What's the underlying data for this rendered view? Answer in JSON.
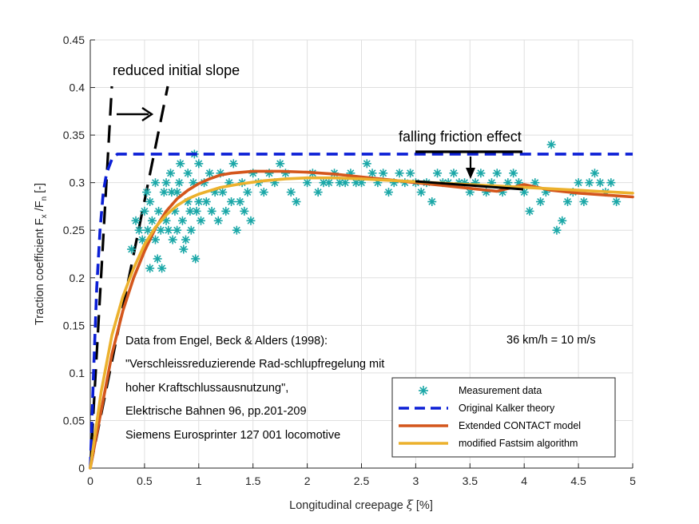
{
  "chart_data": {
    "type": "line",
    "xlabel_main": "Longitudinal creepage ",
    "xlabel_symbol": "ξ",
    "xlabel_unit": " [%]",
    "ylabel_main": "Traction coefficient F",
    "ylabel_sub1": "x",
    "ylabel_mid": " /F",
    "ylabel_sub2": "n",
    "ylabel_unit": " [-]",
    "xlim": [
      0,
      5
    ],
    "ylim": [
      0,
      0.45
    ],
    "x_ticks": [
      "0",
      "0.5",
      "1",
      "1.5",
      "2",
      "2.5",
      "3",
      "3.5",
      "4",
      "4.5",
      "5"
    ],
    "y_ticks": [
      "0",
      "0.05",
      "0.1",
      "0.15",
      "0.2",
      "0.25",
      "0.3",
      "0.35",
      "0.4",
      "0.45"
    ],
    "grid": true,
    "legend_position": "bottom-right",
    "series": [
      {
        "name": "Measurement data",
        "style": "markers",
        "color": "#1aa7a7",
        "points": [
          [
            0.38,
            0.23
          ],
          [
            0.42,
            0.26
          ],
          [
            0.45,
            0.25
          ],
          [
            0.48,
            0.24
          ],
          [
            0.5,
            0.27
          ],
          [
            0.52,
            0.29
          ],
          [
            0.53,
            0.25
          ],
          [
            0.55,
            0.21
          ],
          [
            0.55,
            0.28
          ],
          [
            0.57,
            0.26
          ],
          [
            0.6,
            0.24
          ],
          [
            0.6,
            0.3
          ],
          [
            0.62,
            0.22
          ],
          [
            0.63,
            0.27
          ],
          [
            0.65,
            0.25
          ],
          [
            0.66,
            0.21
          ],
          [
            0.68,
            0.29
          ],
          [
            0.7,
            0.3
          ],
          [
            0.7,
            0.26
          ],
          [
            0.72,
            0.25
          ],
          [
            0.74,
            0.31
          ],
          [
            0.75,
            0.29
          ],
          [
            0.76,
            0.24
          ],
          [
            0.78,
            0.27
          ],
          [
            0.8,
            0.25
          ],
          [
            0.8,
            0.29
          ],
          [
            0.82,
            0.3
          ],
          [
            0.83,
            0.32
          ],
          [
            0.85,
            0.26
          ],
          [
            0.86,
            0.23
          ],
          [
            0.88,
            0.24
          ],
          [
            0.9,
            0.28
          ],
          [
            0.9,
            0.31
          ],
          [
            0.92,
            0.27
          ],
          [
            0.93,
            0.25
          ],
          [
            0.95,
            0.3
          ],
          [
            0.96,
            0.33
          ],
          [
            0.97,
            0.22
          ],
          [
            0.98,
            0.27
          ],
          [
            1.0,
            0.32
          ],
          [
            1.0,
            0.28
          ],
          [
            1.02,
            0.26
          ],
          [
            1.05,
            0.3
          ],
          [
            1.07,
            0.28
          ],
          [
            1.1,
            0.31
          ],
          [
            1.12,
            0.27
          ],
          [
            1.15,
            0.29
          ],
          [
            1.18,
            0.26
          ],
          [
            1.2,
            0.31
          ],
          [
            1.22,
            0.29
          ],
          [
            1.25,
            0.27
          ],
          [
            1.28,
            0.3
          ],
          [
            1.3,
            0.28
          ],
          [
            1.32,
            0.32
          ],
          [
            1.35,
            0.25
          ],
          [
            1.38,
            0.28
          ],
          [
            1.4,
            0.3
          ],
          [
            1.42,
            0.27
          ],
          [
            1.45,
            0.29
          ],
          [
            1.48,
            0.26
          ],
          [
            1.5,
            0.31
          ],
          [
            1.55,
            0.3
          ],
          [
            1.6,
            0.29
          ],
          [
            1.65,
            0.31
          ],
          [
            1.7,
            0.3
          ],
          [
            1.75,
            0.32
          ],
          [
            1.8,
            0.31
          ],
          [
            1.85,
            0.29
          ],
          [
            1.9,
            0.28
          ],
          [
            2.0,
            0.3
          ],
          [
            2.05,
            0.31
          ],
          [
            2.1,
            0.29
          ],
          [
            2.15,
            0.3
          ],
          [
            2.2,
            0.3
          ],
          [
            2.25,
            0.31
          ],
          [
            2.3,
            0.3
          ],
          [
            2.35,
            0.3
          ],
          [
            2.4,
            0.31
          ],
          [
            2.45,
            0.3
          ],
          [
            2.5,
            0.3
          ],
          [
            2.55,
            0.32
          ],
          [
            2.6,
            0.31
          ],
          [
            2.65,
            0.3
          ],
          [
            2.7,
            0.31
          ],
          [
            2.75,
            0.29
          ],
          [
            2.8,
            0.3
          ],
          [
            2.85,
            0.31
          ],
          [
            2.9,
            0.3
          ],
          [
            2.95,
            0.31
          ],
          [
            3.0,
            0.3
          ],
          [
            3.05,
            0.29
          ],
          [
            3.1,
            0.3
          ],
          [
            3.15,
            0.28
          ],
          [
            3.2,
            0.31
          ],
          [
            3.25,
            0.3
          ],
          [
            3.3,
            0.3
          ],
          [
            3.35,
            0.31
          ],
          [
            3.4,
            0.3
          ],
          [
            3.45,
            0.3
          ],
          [
            3.5,
            0.29
          ],
          [
            3.55,
            0.3
          ],
          [
            3.6,
            0.31
          ],
          [
            3.65,
            0.29
          ],
          [
            3.7,
            0.3
          ],
          [
            3.75,
            0.31
          ],
          [
            3.8,
            0.29
          ],
          [
            3.85,
            0.3
          ],
          [
            3.9,
            0.31
          ],
          [
            3.95,
            0.3
          ],
          [
            4.0,
            0.29
          ],
          [
            4.05,
            0.27
          ],
          [
            4.1,
            0.3
          ],
          [
            4.15,
            0.28
          ],
          [
            4.2,
            0.29
          ],
          [
            4.25,
            0.34
          ],
          [
            4.3,
            0.25
          ],
          [
            4.35,
            0.26
          ],
          [
            4.4,
            0.28
          ],
          [
            4.45,
            0.29
          ],
          [
            4.5,
            0.3
          ],
          [
            4.55,
            0.28
          ],
          [
            4.6,
            0.3
          ],
          [
            4.65,
            0.31
          ],
          [
            4.7,
            0.3
          ],
          [
            4.75,
            0.29
          ],
          [
            4.8,
            0.3
          ],
          [
            4.85,
            0.28
          ]
        ]
      },
      {
        "name": "Original Kalker theory",
        "style": "dashed",
        "color": "#0b1fd6",
        "points": [
          [
            0,
            0
          ],
          [
            0.03,
            0.1
          ],
          [
            0.06,
            0.19
          ],
          [
            0.09,
            0.25
          ],
          [
            0.12,
            0.29
          ],
          [
            0.15,
            0.31
          ],
          [
            0.2,
            0.325
          ],
          [
            0.25,
            0.33
          ],
          [
            0.3,
            0.33
          ],
          [
            5,
            0.33
          ]
        ]
      },
      {
        "name": "Extended CONTACT model",
        "style": "solid",
        "color": "#d4561c",
        "points": [
          [
            0,
            0
          ],
          [
            0.1,
            0.06
          ],
          [
            0.2,
            0.12
          ],
          [
            0.3,
            0.165
          ],
          [
            0.4,
            0.2
          ],
          [
            0.5,
            0.228
          ],
          [
            0.6,
            0.252
          ],
          [
            0.7,
            0.27
          ],
          [
            0.8,
            0.283
          ],
          [
            0.9,
            0.292
          ],
          [
            1.0,
            0.299
          ],
          [
            1.1,
            0.304
          ],
          [
            1.2,
            0.308
          ],
          [
            1.3,
            0.31
          ],
          [
            1.5,
            0.312
          ],
          [
            1.75,
            0.312
          ],
          [
            2.0,
            0.311
          ],
          [
            2.25,
            0.309
          ],
          [
            2.5,
            0.306
          ],
          [
            2.75,
            0.303
          ],
          [
            3.0,
            0.3
          ],
          [
            3.25,
            0.297
          ],
          [
            3.5,
            0.294
          ],
          [
            3.75,
            0.291
          ],
          [
            4.0,
            0.298
          ],
          [
            4.25,
            0.292
          ],
          [
            4.5,
            0.289
          ],
          [
            4.75,
            0.287
          ],
          [
            5.0,
            0.285
          ]
        ]
      },
      {
        "name": "modified Fastsim algorithm",
        "style": "solid",
        "color": "#ecb12d",
        "points": [
          [
            0,
            0
          ],
          [
            0.1,
            0.08
          ],
          [
            0.2,
            0.14
          ],
          [
            0.3,
            0.18
          ],
          [
            0.4,
            0.21
          ],
          [
            0.5,
            0.235
          ],
          [
            0.6,
            0.253
          ],
          [
            0.7,
            0.266
          ],
          [
            0.8,
            0.276
          ],
          [
            0.9,
            0.283
          ],
          [
            1.0,
            0.288
          ],
          [
            1.2,
            0.295
          ],
          [
            1.4,
            0.299
          ],
          [
            1.6,
            0.302
          ],
          [
            1.8,
            0.304
          ],
          [
            2.0,
            0.305
          ],
          [
            2.25,
            0.305
          ],
          [
            2.5,
            0.304
          ],
          [
            3.0,
            0.301
          ],
          [
            3.5,
            0.298
          ],
          [
            4.0,
            0.295
          ],
          [
            4.5,
            0.292
          ],
          [
            5.0,
            0.289
          ]
        ]
      }
    ]
  },
  "annotations": {
    "reduced_slope": "reduced initial slope",
    "falling_friction": "falling friction effect",
    "source_lines": [
      "Data from Engel, Beck & Alders (1998):",
      "\"Verschleissreduzierende Rad-schlupfregelung mit",
      "hoher Kraftschlussausnutzung\",",
      "Elektrische Bahnen 96, pp.201-209",
      "Siemens Eurosprinter 127 001 locomotive"
    ],
    "speed": "36 km/h = 10 m/s"
  },
  "legend": {
    "items": [
      "Measurement data",
      "Original Kalker theory",
      "Extended CONTACT model",
      "modified Fastsim algorithm"
    ]
  }
}
